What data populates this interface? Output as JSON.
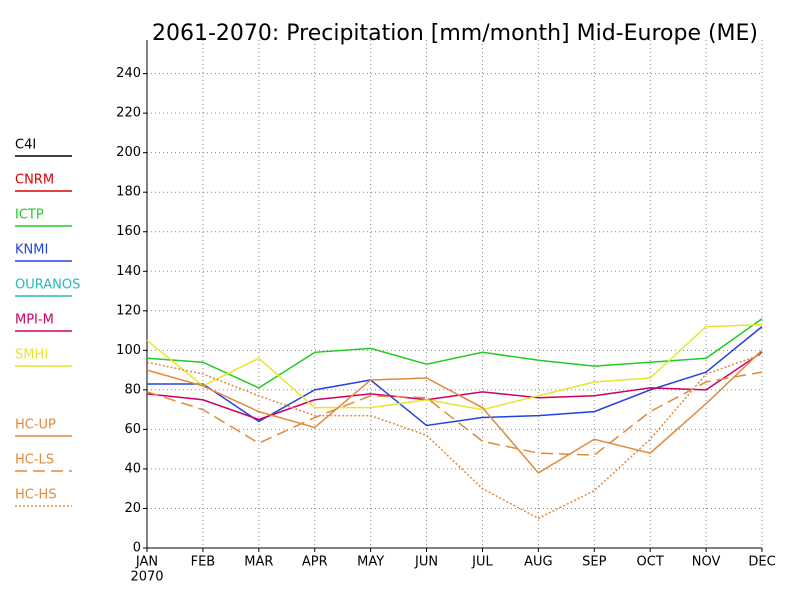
{
  "chart_data": {
    "type": "line",
    "title": "2061-2070: Precipitation [mm/month] Mid-Europe (ME)",
    "categories": [
      "JAN",
      "FEB",
      "MAR",
      "APR",
      "MAY",
      "JUN",
      "JUL",
      "AUG",
      "SEP",
      "OCT",
      "NOV",
      "DEC"
    ],
    "year_label": "2070",
    "ylim": [
      0,
      257
    ],
    "yticks": [
      0,
      20,
      40,
      60,
      80,
      100,
      120,
      140,
      160,
      180,
      200,
      220,
      240
    ],
    "grid": true,
    "legend": "left",
    "series": [
      {
        "name": "C4I",
        "color": "#000000",
        "dash": "solid",
        "values": [
          null,
          null,
          null,
          null,
          null,
          null,
          null,
          null,
          null,
          null,
          null,
          null
        ]
      },
      {
        "name": "CNRM",
        "color": "#e00000",
        "dash": "solid",
        "values": [
          null,
          null,
          null,
          null,
          null,
          null,
          null,
          null,
          null,
          null,
          null,
          null
        ]
      },
      {
        "name": "ICTP",
        "color": "#22cc22",
        "dash": "solid",
        "values": [
          96,
          94,
          81,
          99,
          101,
          93,
          99,
          95,
          92,
          94,
          96,
          116
        ]
      },
      {
        "name": "KNMI",
        "color": "#2244dd",
        "dash": "solid",
        "values": [
          83,
          83,
          64,
          80,
          85,
          62,
          66,
          67,
          69,
          80,
          89,
          112
        ]
      },
      {
        "name": "OURANOS",
        "color": "#22bbbb",
        "dash": "solid",
        "values": [
          null,
          null,
          null,
          null,
          null,
          null,
          null,
          null,
          null,
          null,
          null,
          null
        ]
      },
      {
        "name": "MPI-M",
        "color": "#cc0066",
        "dash": "solid",
        "values": [
          78,
          75,
          65,
          75,
          78,
          75,
          79,
          76,
          77,
          81,
          80,
          99
        ]
      },
      {
        "name": "SMHI",
        "color": "#e6e62a",
        "dash": "solid",
        "values": [
          105,
          82,
          96,
          71,
          71,
          75,
          70,
          77,
          84,
          86,
          112,
          113
        ]
      },
      {
        "name": "HC-UP",
        "color": "#e08a3c",
        "dash": "solid",
        "values": [
          90,
          82,
          69,
          61,
          85,
          86,
          71,
          38,
          55,
          48,
          73,
          100
        ]
      },
      {
        "name": "HC-LS",
        "color": "#e08a3c",
        "dash": "dashed",
        "values": [
          79,
          70,
          53,
          66,
          77,
          76,
          54,
          48,
          47,
          69,
          84,
          89
        ]
      },
      {
        "name": "HC-HS",
        "color": "#e08a3c",
        "dash": "dotted",
        "values": [
          94,
          88,
          77,
          67,
          67,
          57,
          30,
          15,
          29,
          55,
          88,
          98
        ]
      }
    ]
  }
}
